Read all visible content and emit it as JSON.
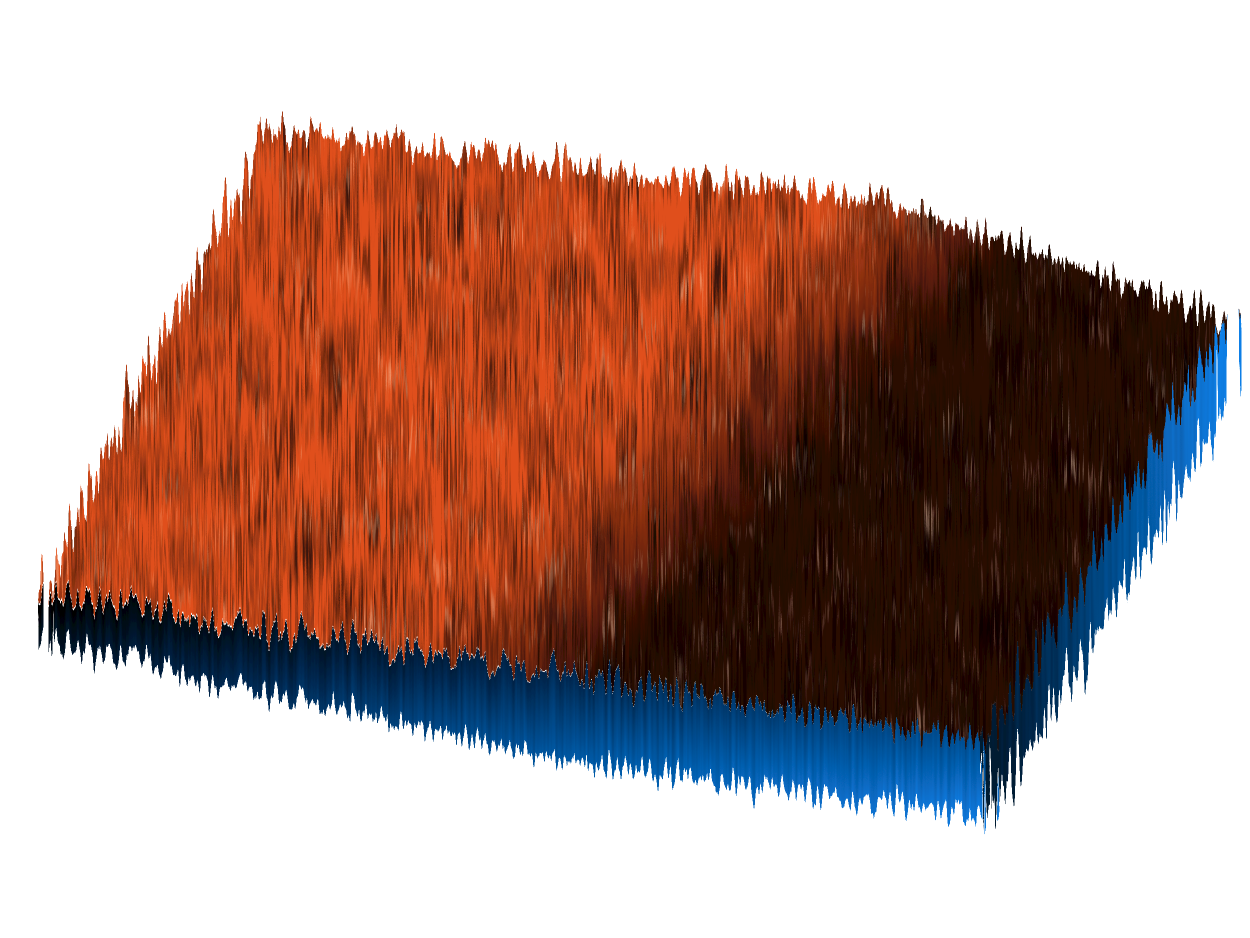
{
  "chart_data": {
    "type": "surface",
    "colors": [
      "#e0501c",
      "#2a0a03",
      "#0a84f0"
    ]
  }
}
